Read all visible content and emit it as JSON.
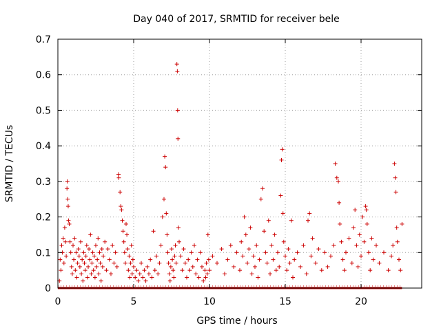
{
  "chart_data": {
    "type": "scatter",
    "title": "Day 040 of 2017, SRMTID for receiver bele",
    "xlabel": "GPS time / hours",
    "ylabel": "SRMTID / TECUs",
    "xlim": [
      0,
      24
    ],
    "ylim": [
      0,
      0.7
    ],
    "xticks": [
      0,
      5,
      10,
      15,
      20
    ],
    "yticks": [
      0,
      0.1,
      0.2,
      0.3,
      0.4,
      0.5,
      0.6,
      0.7
    ],
    "marker": "plus",
    "color": "#cc0000",
    "grid": true,
    "baseline_range": [
      0,
      22.7
    ],
    "baseline_value": 0,
    "points": [
      [
        0.1,
        0.02
      ],
      [
        0.15,
        0.08
      ],
      [
        0.2,
        0.05
      ],
      [
        0.25,
        0.12
      ],
      [
        0.3,
        0.1
      ],
      [
        0.35,
        0.14
      ],
      [
        0.4,
        0.07
      ],
      [
        0.45,
        0.17
      ],
      [
        0.5,
        0.13
      ],
      [
        0.55,
        0.09
      ],
      [
        0.6,
        0.28
      ],
      [
        0.62,
        0.3
      ],
      [
        0.65,
        0.25
      ],
      [
        0.68,
        0.23
      ],
      [
        0.7,
        0.19
      ],
      [
        0.75,
        0.18
      ],
      [
        0.8,
        0.13
      ],
      [
        0.85,
        0.1
      ],
      [
        0.9,
        0.06
      ],
      [
        0.95,
        0.04
      ],
      [
        1.0,
        0.12
      ],
      [
        1.05,
        0.08
      ],
      [
        1.1,
        0.14
      ],
      [
        1.15,
        0.05
      ],
      [
        1.2,
        0.1
      ],
      [
        1.25,
        0.03
      ],
      [
        1.3,
        0.07
      ],
      [
        1.35,
        0.11
      ],
      [
        1.4,
        0.09
      ],
      [
        1.45,
        0.06
      ],
      [
        1.5,
        0.13
      ],
      [
        1.55,
        0.04
      ],
      [
        1.6,
        0.08
      ],
      [
        1.65,
        0.02
      ],
      [
        1.7,
        0.1
      ],
      [
        1.75,
        0.07
      ],
      [
        1.8,
        0.05
      ],
      [
        1.85,
        0.09
      ],
      [
        1.9,
        0.12
      ],
      [
        1.95,
        0.03
      ],
      [
        2.0,
        0.06
      ],
      [
        2.05,
        0.11
      ],
      [
        2.1,
        0.08
      ],
      [
        2.15,
        0.15
      ],
      [
        2.2,
        0.04
      ],
      [
        2.25,
        0.07
      ],
      [
        2.3,
        0.1
      ],
      [
        2.35,
        0.05
      ],
      [
        2.4,
        0.09
      ],
      [
        2.45,
        0.03
      ],
      [
        2.5,
        0.12
      ],
      [
        2.55,
        0.06
      ],
      [
        2.6,
        0.08
      ],
      [
        2.65,
        0.14
      ],
      [
        2.7,
        0.04
      ],
      [
        2.75,
        0.1
      ],
      [
        2.8,
        0.07
      ],
      [
        2.85,
        0.02
      ],
      [
        2.9,
        0.11
      ],
      [
        2.95,
        0.06
      ],
      [
        3.0,
        0.09
      ],
      [
        3.1,
        0.13
      ],
      [
        3.2,
        0.05
      ],
      [
        3.3,
        0.11
      ],
      [
        3.4,
        0.08
      ],
      [
        3.5,
        0.04
      ],
      [
        3.6,
        0.12
      ],
      [
        3.7,
        0.07
      ],
      [
        3.8,
        0.1
      ],
      [
        3.9,
        0.06
      ],
      [
        4.0,
        0.32
      ],
      [
        4.02,
        0.31
      ],
      [
        4.1,
        0.27
      ],
      [
        4.15,
        0.23
      ],
      [
        4.2,
        0.22
      ],
      [
        4.25,
        0.19
      ],
      [
        4.3,
        0.16
      ],
      [
        4.35,
        0.13
      ],
      [
        4.4,
        0.1
      ],
      [
        4.45,
        0.07
      ],
      [
        4.5,
        0.18
      ],
      [
        4.55,
        0.15
      ],
      [
        4.6,
        0.11
      ],
      [
        4.65,
        0.05
      ],
      [
        4.7,
        0.09
      ],
      [
        4.75,
        0.03
      ],
      [
        4.8,
        0.07
      ],
      [
        4.85,
        0.12
      ],
      [
        4.9,
        0.04
      ],
      [
        4.95,
        0.08
      ],
      [
        5.0,
        0.06
      ],
      [
        5.1,
        0.03
      ],
      [
        5.2,
        0.05
      ],
      [
        5.3,
        0.02
      ],
      [
        5.4,
        0.04
      ],
      [
        5.5,
        0.07
      ],
      [
        5.6,
        0.03
      ],
      [
        5.7,
        0.05
      ],
      [
        5.8,
        0.02
      ],
      [
        5.9,
        0.06
      ],
      [
        6.0,
        0.04
      ],
      [
        6.1,
        0.08
      ],
      [
        6.2,
        0.03
      ],
      [
        6.3,
        0.16
      ],
      [
        6.4,
        0.05
      ],
      [
        6.5,
        0.09
      ],
      [
        6.6,
        0.04
      ],
      [
        6.7,
        0.07
      ],
      [
        6.8,
        0.12
      ],
      [
        6.9,
        0.2
      ],
      [
        7.0,
        0.25
      ],
      [
        7.05,
        0.37
      ],
      [
        7.1,
        0.34
      ],
      [
        7.15,
        0.21
      ],
      [
        7.2,
        0.15
      ],
      [
        7.25,
        0.1
      ],
      [
        7.3,
        0.07
      ],
      [
        7.35,
        0.04
      ],
      [
        7.4,
        0.02
      ],
      [
        7.45,
        0.06
      ],
      [
        7.5,
        0.11
      ],
      [
        7.55,
        0.08
      ],
      [
        7.6,
        0.05
      ],
      [
        7.65,
        0.03
      ],
      [
        7.7,
        0.09
      ],
      [
        7.75,
        0.12
      ],
      [
        7.8,
        0.07
      ],
      [
        7.85,
        0.63
      ],
      [
        7.88,
        0.61
      ],
      [
        7.9,
        0.5
      ],
      [
        7.92,
        0.42
      ],
      [
        7.95,
        0.17
      ],
      [
        8.0,
        0.13
      ],
      [
        8.1,
        0.09
      ],
      [
        8.2,
        0.05
      ],
      [
        8.3,
        0.11
      ],
      [
        8.4,
        0.07
      ],
      [
        8.5,
        0.03
      ],
      [
        8.6,
        0.08
      ],
      [
        8.7,
        0.05
      ],
      [
        8.8,
        0.1
      ],
      [
        8.9,
        0.06
      ],
      [
        9.0,
        0.12
      ],
      [
        9.1,
        0.04
      ],
      [
        9.2,
        0.08
      ],
      [
        9.3,
        0.03
      ],
      [
        9.4,
        0.1
      ],
      [
        9.5,
        0.06
      ],
      [
        9.6,
        0.02
      ],
      [
        9.7,
        0.05
      ],
      [
        9.75,
        0.03
      ],
      [
        9.8,
        0.07
      ],
      [
        9.85,
        0.04
      ],
      [
        9.9,
        0.15
      ],
      [
        9.95,
        0.08
      ],
      [
        10.0,
        0.05
      ],
      [
        10.2,
        0.09
      ],
      [
        10.5,
        0.07
      ],
      [
        10.8,
        0.11
      ],
      [
        11.0,
        0.04
      ],
      [
        11.2,
        0.08
      ],
      [
        11.4,
        0.12
      ],
      [
        11.6,
        0.06
      ],
      [
        11.8,
        0.1
      ],
      [
        12.0,
        0.05
      ],
      [
        12.1,
        0.13
      ],
      [
        12.2,
        0.09
      ],
      [
        12.3,
        0.2
      ],
      [
        12.4,
        0.15
      ],
      [
        12.5,
        0.07
      ],
      [
        12.6,
        0.11
      ],
      [
        12.7,
        0.17
      ],
      [
        12.8,
        0.04
      ],
      [
        12.9,
        0.09
      ],
      [
        13.0,
        0.06
      ],
      [
        13.1,
        0.12
      ],
      [
        13.2,
        0.03
      ],
      [
        13.3,
        0.08
      ],
      [
        13.4,
        0.25
      ],
      [
        13.5,
        0.28
      ],
      [
        13.6,
        0.16
      ],
      [
        13.7,
        0.1
      ],
      [
        13.8,
        0.07
      ],
      [
        13.9,
        0.19
      ],
      [
        14.0,
        0.04
      ],
      [
        14.1,
        0.12
      ],
      [
        14.2,
        0.08
      ],
      [
        14.3,
        0.15
      ],
      [
        14.4,
        0.05
      ],
      [
        14.5,
        0.1
      ],
      [
        14.6,
        0.06
      ],
      [
        14.7,
        0.26
      ],
      [
        14.75,
        0.36
      ],
      [
        14.8,
        0.39
      ],
      [
        14.85,
        0.21
      ],
      [
        14.9,
        0.13
      ],
      [
        15.0,
        0.09
      ],
      [
        15.1,
        0.05
      ],
      [
        15.2,
        0.11
      ],
      [
        15.3,
        0.07
      ],
      [
        15.4,
        0.19
      ],
      [
        15.5,
        0.03
      ],
      [
        15.6,
        0.08
      ],
      [
        15.8,
        0.1
      ],
      [
        16.0,
        0.06
      ],
      [
        16.2,
        0.12
      ],
      [
        16.4,
        0.04
      ],
      [
        16.5,
        0.19
      ],
      [
        16.6,
        0.21
      ],
      [
        16.7,
        0.09
      ],
      [
        16.8,
        0.14
      ],
      [
        17.0,
        0.07
      ],
      [
        17.2,
        0.11
      ],
      [
        17.4,
        0.05
      ],
      [
        17.6,
        0.1
      ],
      [
        17.8,
        0.06
      ],
      [
        18.0,
        0.09
      ],
      [
        18.2,
        0.12
      ],
      [
        18.3,
        0.35
      ],
      [
        18.4,
        0.31
      ],
      [
        18.5,
        0.3
      ],
      [
        18.55,
        0.24
      ],
      [
        18.6,
        0.18
      ],
      [
        18.7,
        0.13
      ],
      [
        18.8,
        0.08
      ],
      [
        18.9,
        0.05
      ],
      [
        19.0,
        0.1
      ],
      [
        19.2,
        0.14
      ],
      [
        19.4,
        0.07
      ],
      [
        19.5,
        0.17
      ],
      [
        19.6,
        0.22
      ],
      [
        19.7,
        0.12
      ],
      [
        19.8,
        0.06
      ],
      [
        19.9,
        0.15
      ],
      [
        20.0,
        0.09
      ],
      [
        20.1,
        0.2
      ],
      [
        20.2,
        0.13
      ],
      [
        20.3,
        0.23
      ],
      [
        20.35,
        0.22
      ],
      [
        20.4,
        0.18
      ],
      [
        20.5,
        0.1
      ],
      [
        20.6,
        0.05
      ],
      [
        20.7,
        0.14
      ],
      [
        20.8,
        0.08
      ],
      [
        21.0,
        0.12
      ],
      [
        21.2,
        0.07
      ],
      [
        21.5,
        0.1
      ],
      [
        21.8,
        0.05
      ],
      [
        22.0,
        0.09
      ],
      [
        22.1,
        0.12
      ],
      [
        22.2,
        0.35
      ],
      [
        22.25,
        0.31
      ],
      [
        22.3,
        0.27
      ],
      [
        22.35,
        0.17
      ],
      [
        22.4,
        0.13
      ],
      [
        22.5,
        0.08
      ],
      [
        22.6,
        0.05
      ],
      [
        22.7,
        0.18
      ]
    ]
  }
}
